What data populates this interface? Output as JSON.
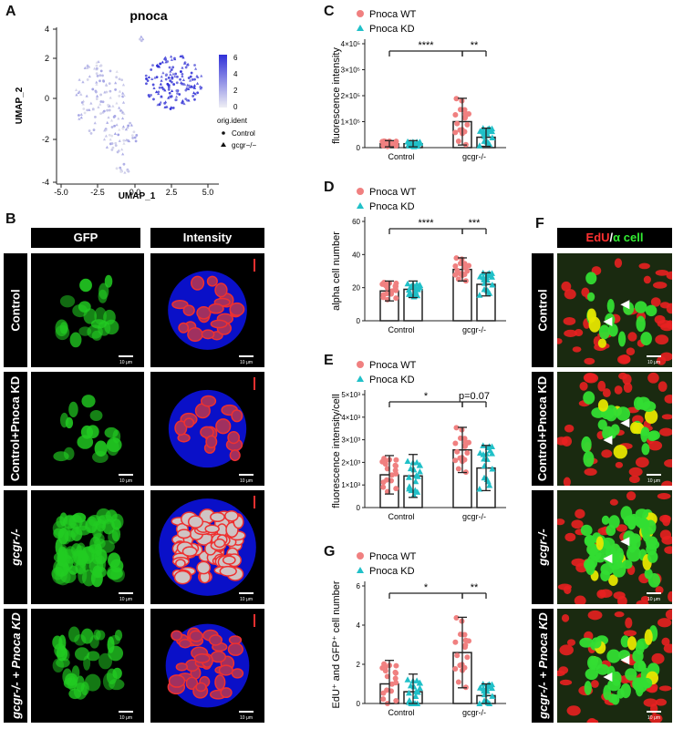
{
  "panels": {
    "A": "A",
    "B": "B",
    "C": "C",
    "D": "D",
    "E": "E",
    "F": "F",
    "G": "G"
  },
  "umap": {
    "title": "pnoca",
    "xlabel": "UMAP_1",
    "ylabel": "UMAP_2",
    "xticks": [
      "-5.0",
      "-2.5",
      "0.0",
      "2.5",
      "5.0"
    ],
    "yticks": [
      "4",
      "2",
      "0",
      "-2",
      "-4"
    ],
    "colorbar_ticks": [
      "6",
      "4",
      "2",
      "0"
    ],
    "legend_title": "orig.ident",
    "legend_items": [
      "Control",
      "gcgr−/−"
    ],
    "colors": {
      "low": "#d9d9ea",
      "high": "#2f2fd6"
    }
  },
  "panelB": {
    "col_headers": [
      "GFP",
      "Intensity"
    ],
    "row_labels": [
      "Control",
      "Control+Pnoca KD",
      "gcgr-/-",
      "gcgr-/- + Pnoca KD"
    ],
    "scale_label": "10 μm"
  },
  "panelF": {
    "header_edu": "EdU",
    "header_sep": "/",
    "header_alpha": "α cell",
    "row_labels": [
      "Control",
      "Control+Pnoca KD",
      "gcgr-/-",
      "gcgr-/- + Pnoca KD"
    ],
    "scale_label": "10 μm",
    "colors": {
      "edu": "#ff2020",
      "alpha": "#22dd22"
    }
  },
  "legend": {
    "wt": "Pnoca WT",
    "kd": "Pnoca KD"
  },
  "colors": {
    "wt": "#f08080",
    "kd": "#20c0c8"
  },
  "chart_data": [
    {
      "panel": "C",
      "type": "bar",
      "ylabel": "fluorescence intensity",
      "yticks": [
        "0",
        "1×10⁵",
        "2×10⁵",
        "3×10⁵",
        "4×10⁵"
      ],
      "ylim": [
        0,
        400000
      ],
      "categories": [
        "Control",
        "gcgr-/-"
      ],
      "series": [
        {
          "name": "Pnoca WT",
          "values": [
            15000,
            100000
          ],
          "sd": [
            12000,
            90000
          ]
        },
        {
          "name": "Pnoca KD",
          "values": [
            15000,
            40000
          ],
          "sd": [
            12000,
            35000
          ]
        }
      ],
      "significance": [
        {
          "from": [
            0,
            0
          ],
          "to": [
            1,
            0
          ],
          "label": "****"
        },
        {
          "from": [
            1,
            0
          ],
          "to": [
            1,
            1
          ],
          "label": "**"
        }
      ]
    },
    {
      "panel": "D",
      "type": "bar",
      "ylabel": "alpha cell number",
      "yticks": [
        "0",
        "20",
        "40",
        "60"
      ],
      "ylim": [
        0,
        60
      ],
      "categories": [
        "Control",
        "gcgr-/-"
      ],
      "series": [
        {
          "name": "Pnoca WT",
          "values": [
            18,
            31
          ],
          "sd": [
            6,
            7
          ]
        },
        {
          "name": "Pnoca KD",
          "values": [
            19,
            22
          ],
          "sd": [
            5,
            7
          ]
        }
      ],
      "significance": [
        {
          "from": [
            0,
            0
          ],
          "to": [
            1,
            0
          ],
          "label": "****"
        },
        {
          "from": [
            1,
            0
          ],
          "to": [
            1,
            1
          ],
          "label": "***"
        }
      ]
    },
    {
      "panel": "E",
      "type": "bar",
      "ylabel": "fluorescence intensity/cell",
      "yticks": [
        "0",
        "1×10³",
        "2×10³",
        "3×10³",
        "4×10³",
        "5×10³"
      ],
      "ylim": [
        0,
        5000
      ],
      "categories": [
        "Control",
        "gcgr-/-"
      ],
      "series": [
        {
          "name": "Pnoca WT",
          "values": [
            1450,
            2550
          ],
          "sd": [
            850,
            1000
          ]
        },
        {
          "name": "Pnoca KD",
          "values": [
            1400,
            1750
          ],
          "sd": [
            950,
            1000
          ]
        }
      ],
      "significance": [
        {
          "from": [
            0,
            0
          ],
          "to": [
            1,
            0
          ],
          "label": "*"
        },
        {
          "from": [
            1,
            0
          ],
          "to": [
            1,
            1
          ],
          "label": "p=0.07"
        }
      ]
    },
    {
      "panel": "G",
      "type": "bar",
      "ylabel": "EdU⁺ and GFP⁺ cell number",
      "yticks": [
        "0",
        "2",
        "4",
        "6"
      ],
      "ylim": [
        0,
        6
      ],
      "categories": [
        "Control",
        "gcgr-/-"
      ],
      "series": [
        {
          "name": "Pnoca WT",
          "values": [
            1.0,
            2.6
          ],
          "sd": [
            1.2,
            1.8
          ]
        },
        {
          "name": "Pnoca KD",
          "values": [
            0.6,
            0.4
          ],
          "sd": [
            0.9,
            0.6
          ]
        }
      ],
      "significance": [
        {
          "from": [
            0,
            0
          ],
          "to": [
            1,
            0
          ],
          "label": "*"
        },
        {
          "from": [
            1,
            0
          ],
          "to": [
            1,
            1
          ],
          "label": "**"
        }
      ]
    }
  ]
}
